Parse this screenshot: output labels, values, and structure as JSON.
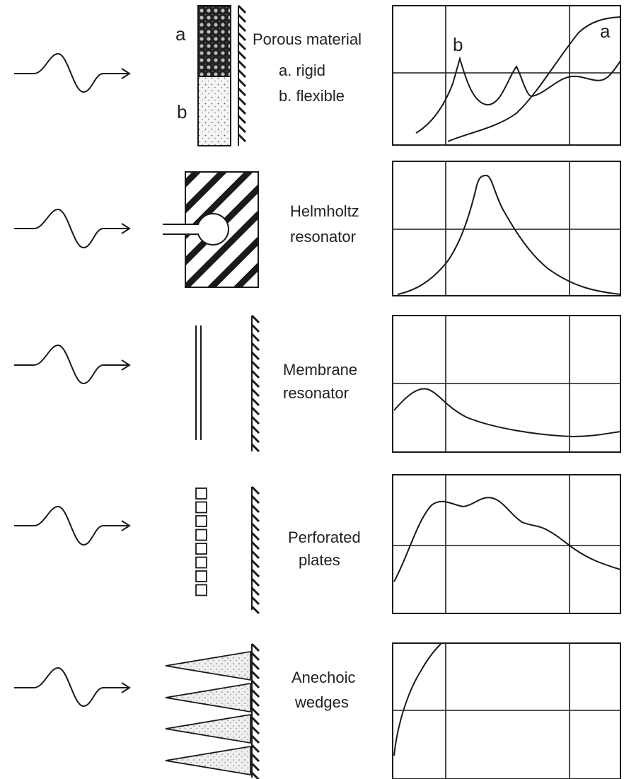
{
  "rows": [
    {
      "id": "porous",
      "label_lines": [
        "Porous material"
      ],
      "sub_lines": [
        "a. rigid",
        "b. flexible"
      ],
      "layer_labels": [
        "a",
        "b"
      ],
      "curve_labels": [
        "b",
        "a"
      ]
    },
    {
      "id": "helmholtz",
      "label_lines": [
        "Helmholtz",
        "resonator"
      ]
    },
    {
      "id": "membrane",
      "label_lines": [
        "Membrane",
        "resonator"
      ]
    },
    {
      "id": "perforated",
      "label_lines": [
        "Perforated",
        "plates"
      ]
    },
    {
      "id": "anechoic",
      "label_lines": [
        "Anechoic",
        "wedges"
      ]
    }
  ],
  "colors": {
    "ink": "#1a1a1a",
    "background": "#ffffff"
  }
}
